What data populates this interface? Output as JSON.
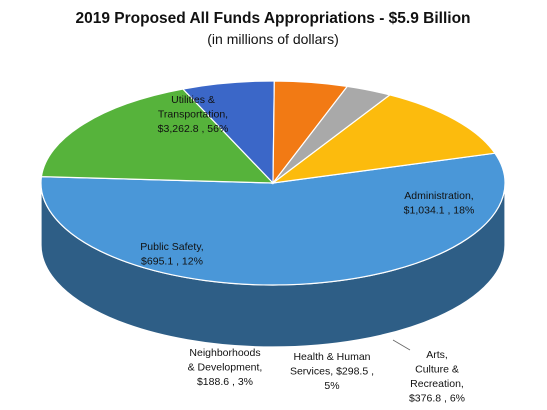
{
  "chart_data": {
    "type": "pie",
    "style": "3d",
    "title": "2019 Proposed All Funds Appropriations - $5.9 Billion",
    "subtitle": "(in millions of dollars)",
    "slices": [
      {
        "key": "utilities",
        "name": "Utilities & Transportation",
        "value": 3262.8,
        "percent": 56,
        "color": "#4a97d8",
        "label_lines": [
          "Utilities &",
          "Transportation,",
          "$3,262.8 , 56%"
        ]
      },
      {
        "key": "administration",
        "name": "Administration",
        "value": 1034.1,
        "percent": 18,
        "color": "#56b33b",
        "label_lines": [
          "Administration,",
          "$1,034.1 , 18%"
        ]
      },
      {
        "key": "arts",
        "name": "Arts, Culture & Recreation",
        "value": 376.8,
        "percent": 6,
        "color": "#3b67c8",
        "label_lines": [
          "Arts,",
          "Culture &",
          "Recreation,",
          "$376.8 , 6%"
        ]
      },
      {
        "key": "health",
        "name": "Health & Human Services",
        "value": 298.5,
        "percent": 5,
        "color": "#f27a14",
        "label_lines": [
          "Health & Human",
          "Services, $298.5 ,",
          "5%"
        ]
      },
      {
        "key": "neighborhoods",
        "name": "Neighborhoods & Development",
        "value": 188.6,
        "percent": 3,
        "color": "#a9a9a9",
        "label_lines": [
          "Neighborhoods",
          "& Development,",
          "$188.6 , 3%"
        ]
      },
      {
        "key": "public_safety",
        "name": "Public Safety",
        "value": 695.1,
        "percent": 12,
        "color": "#fcbb0d",
        "label_lines": [
          "Public Safety,",
          "$695.1 , 12%"
        ]
      }
    ]
  }
}
